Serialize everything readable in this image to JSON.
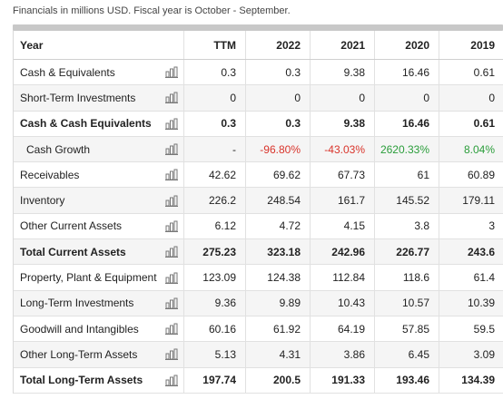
{
  "note": "Financials in millions USD. Fiscal year is October - September.",
  "columns": [
    "Year",
    "TTM",
    "2022",
    "2021",
    "2020",
    "2019"
  ],
  "rows": [
    {
      "label": "Cash & Equivalents",
      "values": [
        "0.3",
        "0.3",
        "9.38",
        "16.46",
        "0.61"
      ],
      "bold": false
    },
    {
      "label": "Short-Term Investments",
      "values": [
        "0",
        "0",
        "0",
        "0",
        "0"
      ],
      "bold": false
    },
    {
      "label": "Cash & Cash Equivalents",
      "values": [
        "0.3",
        "0.3",
        "9.38",
        "16.46",
        "0.61"
      ],
      "bold": true
    },
    {
      "label": "Cash Growth",
      "values": [
        "-",
        "-96.80%",
        "-43.03%",
        "2620.33%",
        "8.04%"
      ],
      "bold": false,
      "growth": true
    },
    {
      "label": "Receivables",
      "values": [
        "42.62",
        "69.62",
        "67.73",
        "61",
        "60.89"
      ],
      "bold": false
    },
    {
      "label": "Inventory",
      "values": [
        "226.2",
        "248.54",
        "161.7",
        "145.52",
        "179.11"
      ],
      "bold": false
    },
    {
      "label": "Other Current Assets",
      "values": [
        "6.12",
        "4.72",
        "4.15",
        "3.8",
        "3"
      ],
      "bold": false
    },
    {
      "label": "Total Current Assets",
      "values": [
        "275.23",
        "323.18",
        "242.96",
        "226.77",
        "243.6"
      ],
      "bold": true
    },
    {
      "label": "Property, Plant & Equipment",
      "values": [
        "123.09",
        "124.38",
        "112.84",
        "118.6",
        "61.4"
      ],
      "bold": false
    },
    {
      "label": "Long-Term Investments",
      "values": [
        "9.36",
        "9.89",
        "10.43",
        "10.57",
        "10.39"
      ],
      "bold": false
    },
    {
      "label": "Goodwill and Intangibles",
      "values": [
        "60.16",
        "61.92",
        "64.19",
        "57.85",
        "59.5"
      ],
      "bold": false
    },
    {
      "label": "Other Long-Term Assets",
      "values": [
        "5.13",
        "4.31",
        "3.86",
        "6.45",
        "3.09"
      ],
      "bold": false
    },
    {
      "label": "Total Long-Term Assets",
      "values": [
        "197.74",
        "200.5",
        "191.33",
        "193.46",
        "134.39"
      ],
      "bold": true
    }
  ],
  "icons": {
    "row_chart": "bar-chart-icon"
  },
  "colors": {
    "negative": "#d9342b",
    "positive": "#2a9d3a"
  }
}
